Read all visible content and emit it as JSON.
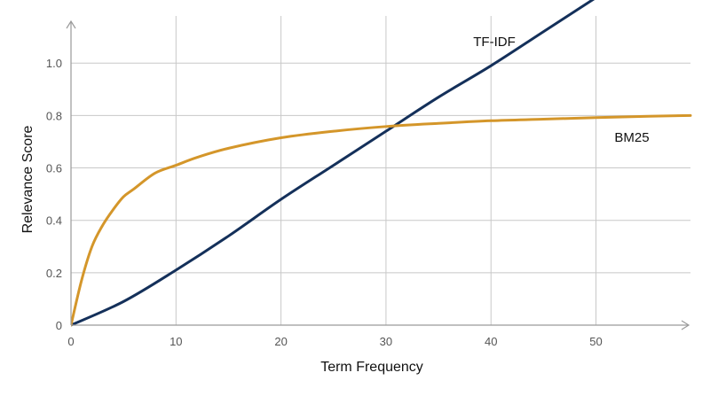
{
  "chart_data": {
    "type": "line",
    "title": "",
    "xlabel": "Term Frequency",
    "ylabel": "Relevance Score",
    "xlim": [
      0,
      59
    ],
    "ylim": [
      0,
      1.18
    ],
    "xticks": [
      0,
      10,
      20,
      30,
      40,
      50
    ],
    "xtick_labels": [
      "0",
      "10",
      "20",
      "30",
      "40",
      "50"
    ],
    "yticks": [
      0,
      0.2,
      0.4,
      0.6,
      0.8,
      1.0
    ],
    "ytick_labels": [
      "0",
      "0.2",
      "0.4",
      "0.6",
      "0.8",
      "1.0"
    ],
    "grid": true,
    "series": [
      {
        "name": "TF-IDF",
        "color": "#14305a",
        "x": [
          0,
          5,
          10,
          15,
          20,
          25,
          30,
          35,
          40,
          45,
          50
        ],
        "y": [
          0,
          0.09,
          0.21,
          0.34,
          0.48,
          0.61,
          0.74,
          0.87,
          0.99,
          1.12,
          1.25
        ]
      },
      {
        "name": "BM25",
        "color": "#d4962a",
        "x": [
          0,
          1,
          2,
          3,
          4,
          5,
          6,
          8,
          10,
          12,
          15,
          20,
          25,
          30,
          35,
          40,
          45,
          50,
          55,
          59
        ],
        "y": [
          0,
          0.17,
          0.3,
          0.38,
          0.44,
          0.49,
          0.52,
          0.58,
          0.61,
          0.64,
          0.675,
          0.715,
          0.74,
          0.758,
          0.77,
          0.78,
          0.786,
          0.792,
          0.797,
          0.8
        ]
      }
    ]
  }
}
